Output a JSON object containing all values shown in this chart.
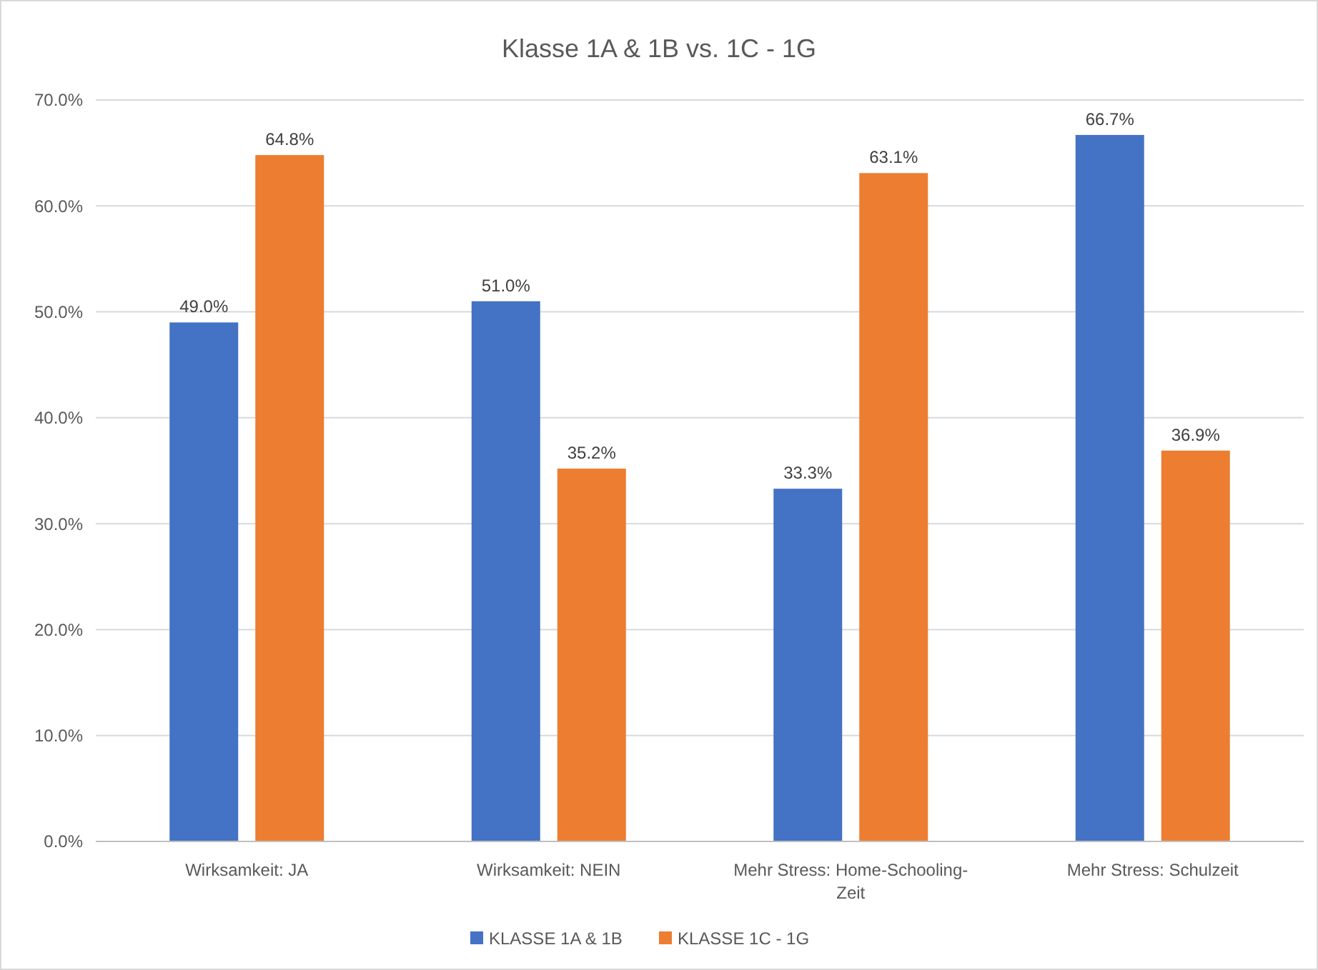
{
  "chart_data": {
    "type": "bar",
    "title": "Klasse 1A & 1B vs. 1C - 1G",
    "categories": [
      "Wirksamkeit: JA",
      "Wirksamkeit: NEIN",
      "Mehr Stress: Home-Schooling-Zeit",
      "Mehr Stress: Schulzeit"
    ],
    "series": [
      {
        "name": "KLASSE 1A & 1B",
        "color": "#4472c4",
        "values": [
          49.0,
          51.0,
          33.3,
          66.7
        ],
        "value_labels": [
          "49.0%",
          "51.0%",
          "33.3%",
          "66.7%"
        ]
      },
      {
        "name": "KLASSE 1C - 1G",
        "color": "#ed7d31",
        "values": [
          64.8,
          35.2,
          63.1,
          36.9
        ],
        "value_labels": [
          "64.8%",
          "35.2%",
          "63.1%",
          "36.9%"
        ]
      }
    ],
    "ylim": [
      0,
      70
    ],
    "yticks": [
      {
        "value": 0,
        "label": "0.0%"
      },
      {
        "value": 10,
        "label": "10.0%"
      },
      {
        "value": 20,
        "label": "20.0%"
      },
      {
        "value": 30,
        "label": "30.0%"
      },
      {
        "value": 40,
        "label": "40.0%"
      },
      {
        "value": 50,
        "label": "50.0%"
      },
      {
        "value": 60,
        "label": "60.0%"
      },
      {
        "value": 70,
        "label": "70.0%"
      }
    ],
    "grid": "y",
    "legend": "bottom"
  }
}
